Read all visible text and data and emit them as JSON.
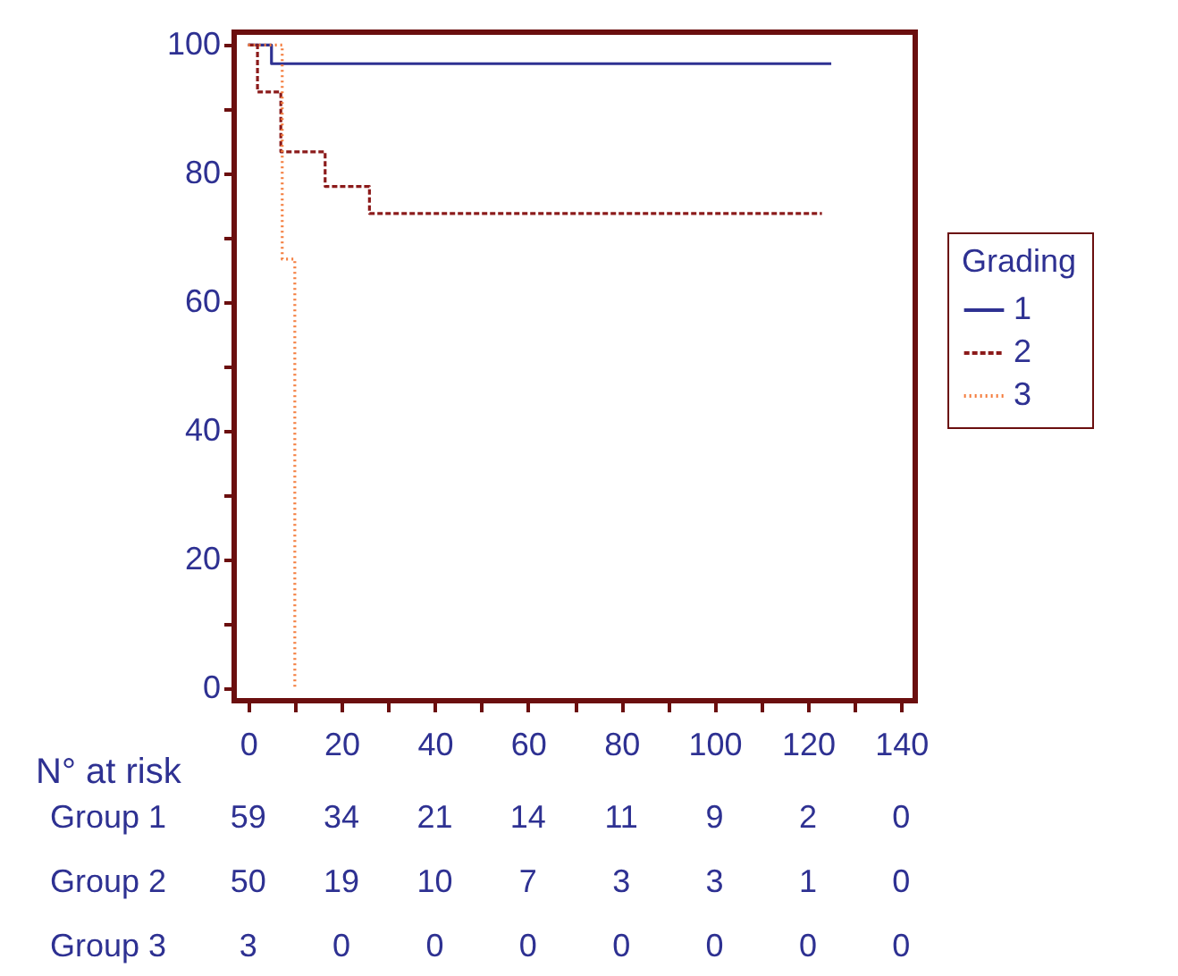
{
  "chart_data": {
    "type": "step",
    "legend_title": "Grading",
    "legend": "right",
    "xlim": [
      -3,
      143
    ],
    "ylim": [
      -2,
      102
    ],
    "xticks": [
      0,
      {
        "value": 10,
        "label": null
      },
      20,
      {
        "value": 30,
        "label": null
      },
      40,
      {
        "value": 50,
        "label": null
      },
      60,
      {
        "value": 70,
        "label": null
      },
      80,
      {
        "value": 90,
        "label": null
      },
      100,
      {
        "value": 110,
        "label": null
      },
      120,
      {
        "value": 130,
        "label": null
      },
      140
    ],
    "yticks": [
      0,
      {
        "value": 10,
        "label": null
      },
      20,
      {
        "value": 30,
        "label": null
      },
      40,
      {
        "value": 50,
        "label": null
      },
      60,
      {
        "value": 70,
        "label": null
      },
      80,
      {
        "value": 90,
        "label": null
      },
      100
    ],
    "grid": false,
    "series": [
      {
        "name": "1",
        "color": "#2e3192",
        "line_style": "solid",
        "x": [
          0,
          5,
          125
        ],
        "values": [
          100,
          97.1,
          97.1
        ]
      },
      {
        "name": "2",
        "color": "#8b1a1a",
        "line_style": "dashed",
        "x": [
          0,
          2,
          7,
          16.5,
          26,
          123
        ],
        "values": [
          100,
          92.7,
          83.4,
          78,
          73.8,
          73.8
        ]
      },
      {
        "name": "3",
        "color": "#f47c3c",
        "line_style": "dotted",
        "x": [
          0,
          7.3,
          10
        ],
        "values": [
          100,
          66.7,
          0
        ]
      }
    ],
    "annotations": [
      "N° at risk",
      "Group 1",
      "59",
      "34",
      "21",
      "14",
      "11",
      "9",
      "2",
      "0",
      "Group 2",
      "50",
      "19",
      "10",
      "7",
      "3",
      "3",
      "1",
      "0",
      "Group 3",
      "3",
      "0",
      "0",
      "0",
      "0",
      "0",
      "0",
      "0"
    ]
  }
}
